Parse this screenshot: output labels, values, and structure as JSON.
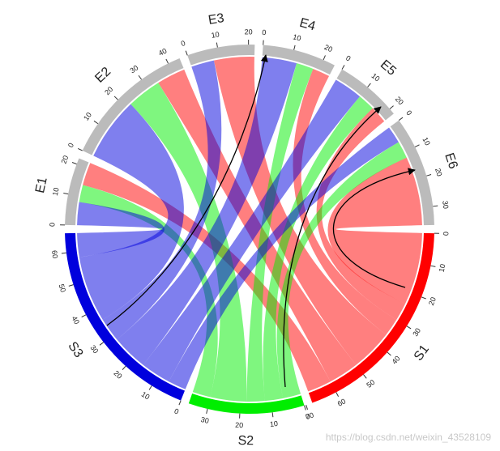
{
  "chart_data": {
    "type": "chord",
    "sectors": [
      {
        "name": "S1",
        "color": "#ff0000",
        "ticks": [
          0,
          10,
          20,
          30,
          40,
          50,
          60,
          70
        ]
      },
      {
        "name": "S2",
        "color": "#00ee00",
        "ticks": [
          0,
          10,
          20,
          30
        ]
      },
      {
        "name": "S3",
        "color": "#0000dd",
        "ticks": [
          0,
          10,
          20,
          30,
          40,
          50,
          60
        ]
      },
      {
        "name": "E1",
        "color": "#bbbbbb",
        "ticks": [
          0,
          10,
          20
        ]
      },
      {
        "name": "E2",
        "color": "#bbbbbb",
        "ticks": [
          0,
          10,
          20,
          30,
          40
        ]
      },
      {
        "name": "E3",
        "color": "#bbbbbb",
        "ticks": [
          0,
          10,
          20
        ]
      },
      {
        "name": "E4",
        "color": "#bbbbbb",
        "ticks": [
          0,
          10,
          20
        ]
      },
      {
        "name": "E5",
        "color": "#bbbbbb",
        "ticks": [
          0,
          10,
          20
        ]
      },
      {
        "name": "E6",
        "color": "#bbbbbb",
        "ticks": [
          0,
          10,
          20,
          30
        ]
      }
    ],
    "links": [
      {
        "source": "S1",
        "target": "E6",
        "value": 24
      },
      {
        "source": "S1",
        "target": "E5",
        "value": 6
      },
      {
        "source": "S1",
        "target": "E4",
        "value": 6
      },
      {
        "source": "S1",
        "target": "E3",
        "value": 14
      },
      {
        "source": "S1",
        "target": "E2",
        "value": 10
      },
      {
        "source": "S1",
        "target": "E1",
        "value": 8
      },
      {
        "source": "S2",
        "target": "E6",
        "value": 6
      },
      {
        "source": "S2",
        "target": "E5",
        "value": 6
      },
      {
        "source": "S2",
        "target": "E4",
        "value": 6
      },
      {
        "source": "S2",
        "target": "E2",
        "value": 12
      },
      {
        "source": "S2",
        "target": "E1",
        "value": 6
      },
      {
        "source": "S3",
        "target": "E6",
        "value": 6
      },
      {
        "source": "S3",
        "target": "E5",
        "value": 10
      },
      {
        "source": "S3",
        "target": "E4",
        "value": 12
      },
      {
        "source": "S3",
        "target": "E3",
        "value": 8
      },
      {
        "source": "S3",
        "target": "E2",
        "value": 22
      },
      {
        "source": "S3",
        "target": "E1",
        "value": 8
      }
    ],
    "watermark": "https://blog.csdn.net/weixin_43528109"
  }
}
